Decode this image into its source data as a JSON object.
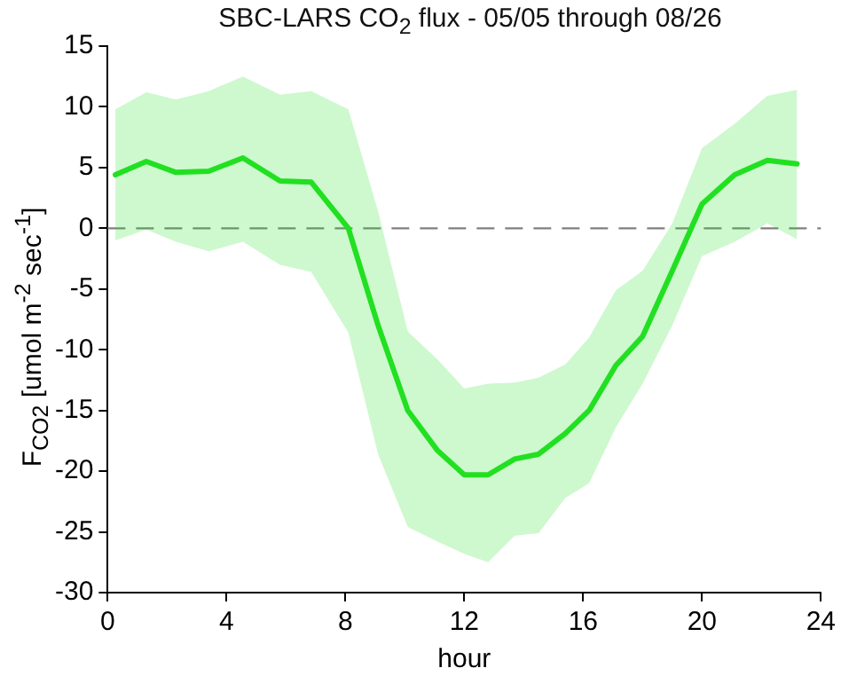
{
  "chart_data": {
    "type": "line",
    "title": "SBC-LARS CO$_{2}$ flux - 05/05 through 08/26",
    "xlabel": "hour",
    "ylabel": "F$_{CO2}$ [umol m$^{-2}$ sec$^{-1}$]",
    "x": [
      0.26,
      1.3,
      2.3,
      3.4,
      4.55,
      5.8,
      6.85,
      8.1,
      9.1,
      10.1,
      11.1,
      12.0,
      12.8,
      13.7,
      14.5,
      15.4,
      16.2,
      17.1,
      18.0,
      19.0,
      20.0,
      21.1,
      22.2,
      23.2
    ],
    "series": [
      {
        "color": "#22e022",
        "values": [
          4.4,
          5.5,
          4.6,
          4.7,
          5.8,
          3.9,
          3.8,
          0,
          -8,
          -15,
          -18.3,
          -20.3,
          -20.3,
          -19,
          -18.6,
          -16.9,
          -15,
          -11.3,
          -8.9,
          -3.5,
          2.0,
          4.4,
          5.6,
          5.3
        ],
        "upper": [
          9.8,
          11.2,
          10.6,
          11.3,
          12.5,
          11.0,
          11.3,
          9.8,
          1.4,
          -8.5,
          -10.8,
          -13.2,
          -12.8,
          -12.7,
          -12.3,
          -11.2,
          -9.0,
          -5.1,
          -3.5,
          0.4,
          6.6,
          8.6,
          10.9,
          11.4
        ],
        "lower": [
          -1.0,
          -0.1,
          -1.1,
          -1.9,
          -1.1,
          -3.0,
          -3.6,
          -8.6,
          -18.6,
          -24.6,
          -25.8,
          -26.8,
          -27.5,
          -25.3,
          -25.1,
          -22.2,
          -21.0,
          -16.4,
          -12.8,
          -8,
          -2.3,
          -1.1,
          0.4,
          -0.9
        ]
      }
    ],
    "xlim": [
      0,
      24
    ],
    "xticks": [
      0,
      4,
      8,
      12,
      16,
      20,
      24
    ],
    "ylim": [
      -30,
      15
    ],
    "yticks": [
      -30,
      -25,
      -20,
      -15,
      -10,
      -5,
      0,
      5,
      10,
      15
    ],
    "ref_lines": [
      {
        "axis": "y",
        "value": 0,
        "color": "#808080",
        "line_style": "dashed"
      }
    ],
    "grid": false,
    "legend": false,
    "marker": "none",
    "line_style": "solid"
  }
}
